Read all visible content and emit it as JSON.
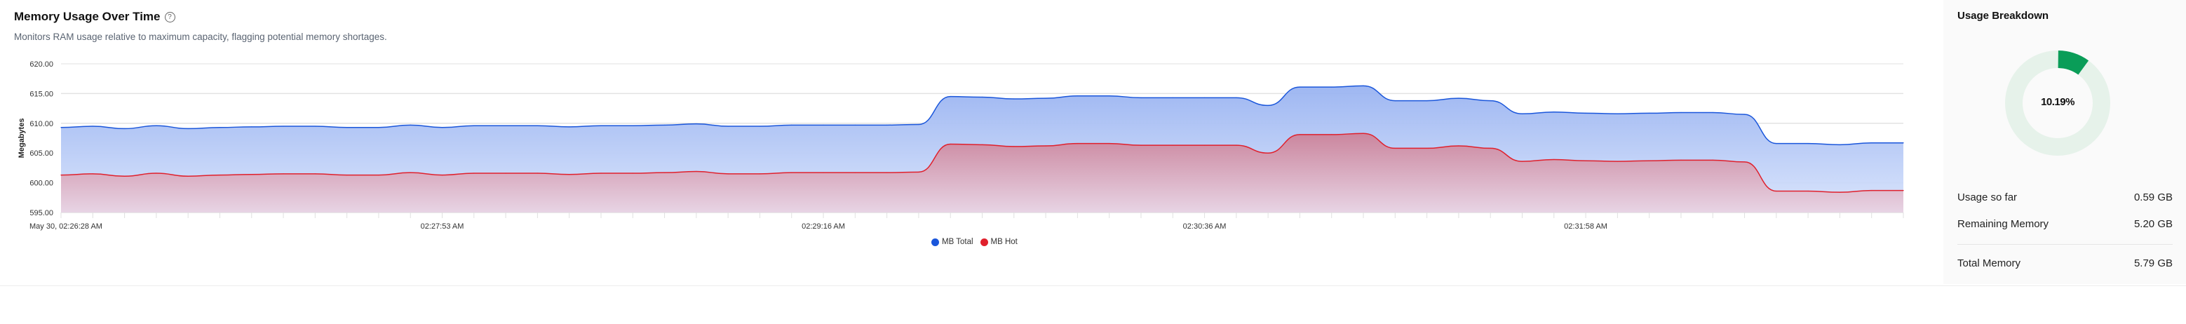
{
  "header": {
    "title": "Memory Usage Over Time",
    "help_icon": "question-circle-icon",
    "subtitle": "Monitors RAM usage relative to maximum capacity, flagging potential memory shortages."
  },
  "chart_data": {
    "type": "area",
    "ylabel": "Megabytes",
    "xlabel": "",
    "ylim": [
      595,
      620
    ],
    "y_ticks": [
      "620.00",
      "615.00",
      "610.00",
      "605.00",
      "600.00",
      "595.00"
    ],
    "x_tick_labels": [
      "May 30, 02:26:28 AM",
      "02:27:53 AM",
      "02:29:16 AM",
      "02:30:36 AM",
      "02:31:58 AM"
    ],
    "grid": true,
    "legend_placement": "bottom",
    "x": [
      "02:26:28",
      "02:26:35",
      "02:26:42",
      "02:26:49",
      "02:26:56",
      "02:27:03",
      "02:27:10",
      "02:27:18",
      "02:27:25",
      "02:27:32",
      "02:27:39",
      "02:27:46",
      "02:27:53",
      "02:28:00",
      "02:28:07",
      "02:28:14",
      "02:28:21",
      "02:28:28",
      "02:28:35",
      "02:28:41",
      "02:28:48",
      "02:28:55",
      "02:29:02",
      "02:29:09",
      "02:29:16",
      "02:29:23",
      "02:29:29",
      "02:29:36",
      "02:29:43",
      "02:29:49",
      "02:29:56",
      "02:30:03",
      "02:30:09",
      "02:30:16",
      "02:30:23",
      "02:30:29",
      "02:30:36",
      "02:30:43",
      "02:30:50",
      "02:30:57",
      "02:31:03",
      "02:31:10",
      "02:31:17",
      "02:31:24",
      "02:31:31",
      "02:31:38",
      "02:31:44",
      "02:31:51",
      "02:31:58",
      "02:32:05",
      "02:32:12",
      "02:32:19",
      "02:32:25",
      "02:32:32",
      "02:32:39",
      "02:32:46",
      "02:32:53",
      "02:33:00",
      "02:33:06"
    ],
    "series": [
      {
        "name": "MB Total",
        "color": "#1a56db",
        "values": [
          609.3,
          609.5,
          609.1,
          609.6,
          609.1,
          609.3,
          609.4,
          609.5,
          609.5,
          609.3,
          609.3,
          609.7,
          609.3,
          609.6,
          609.6,
          609.6,
          609.4,
          609.6,
          609.6,
          609.7,
          609.9,
          609.5,
          609.5,
          609.7,
          609.7,
          609.7,
          609.7,
          609.8,
          614.5,
          614.4,
          614.1,
          614.2,
          614.6,
          614.6,
          614.3,
          614.3,
          614.3,
          614.3,
          613.0,
          616.1,
          616.1,
          616.3,
          613.8,
          613.8,
          614.2,
          613.8,
          611.6,
          611.9,
          611.7,
          611.6,
          611.7,
          611.8,
          611.8,
          611.5,
          606.6,
          606.6,
          606.4,
          606.7,
          606.7
        ]
      },
      {
        "name": "MB Hot",
        "color": "#e0202c",
        "values": [
          601.3,
          601.5,
          601.1,
          601.6,
          601.1,
          601.3,
          601.4,
          601.5,
          601.5,
          601.3,
          601.3,
          601.7,
          601.3,
          601.6,
          601.6,
          601.6,
          601.4,
          601.6,
          601.6,
          601.7,
          601.9,
          601.5,
          601.5,
          601.7,
          601.7,
          601.7,
          601.7,
          601.8,
          606.5,
          606.4,
          606.1,
          606.2,
          606.6,
          606.6,
          606.3,
          606.3,
          606.3,
          606.3,
          605.0,
          608.1,
          608.1,
          608.3,
          605.8,
          605.8,
          606.2,
          605.8,
          603.6,
          603.9,
          603.7,
          603.6,
          603.7,
          603.8,
          603.8,
          603.5,
          598.6,
          598.6,
          598.4,
          598.7,
          598.7
        ]
      }
    ]
  },
  "legend": [
    {
      "label": "MB Total",
      "color": "#1a56db"
    },
    {
      "label": "MB Hot",
      "color": "#e0202c"
    }
  ],
  "breakdown": {
    "title": "Usage Breakdown",
    "percent_label": "10.19%",
    "percent": 10.19,
    "accent": "#0a9d58",
    "track": "#e6f2ea",
    "rows": [
      {
        "label": "Usage so far",
        "value": "0.59 GB"
      },
      {
        "label": "Remaining Memory",
        "value": "5.20 GB"
      },
      {
        "label": "Total Memory",
        "value": "5.79 GB"
      }
    ]
  }
}
